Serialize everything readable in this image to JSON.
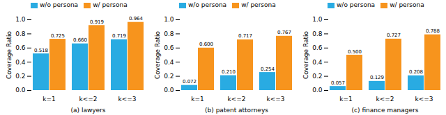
{
  "chart_data": [
    {
      "type": "bar",
      "xlabel": "(a) lawyers",
      "ylabel": "Coverage Ratio",
      "categories": [
        "k=1",
        "k<=2",
        "k<=3"
      ],
      "series": [
        {
          "name": "w/o persona",
          "color": "#29ABE2",
          "values": [
            0.518,
            0.66,
            0.719
          ],
          "value_labels": [
            "0.518",
            "0.660",
            "0.719"
          ]
        },
        {
          "name": "w/ persona",
          "color": "#F7941D",
          "values": [
            0.725,
            0.919,
            0.964
          ],
          "value_labels": [
            "0.725",
            "0.919",
            "0.964"
          ]
        }
      ],
      "ylim": [
        0.0,
        1.0
      ],
      "yticks": [
        {
          "value": 0.0,
          "label": "0.0"
        },
        0.2,
        0.4,
        0.6,
        0.8,
        {
          "value": 1.0,
          "label": "1.0"
        }
      ],
      "legend": "upper left",
      "data_labels": true
    },
    {
      "type": "bar",
      "xlabel": "(b) patent attorneys",
      "ylabel": "Coverage Ratio",
      "categories": [
        "k=1",
        "k<=2",
        "k<=3"
      ],
      "series": [
        {
          "name": "w/o persona",
          "color": "#29ABE2",
          "values": [
            0.072,
            0.21,
            0.254
          ],
          "value_labels": [
            "0.072",
            "0.210",
            "0.254"
          ]
        },
        {
          "name": "w/ persona",
          "color": "#F7941D",
          "values": [
            0.6,
            0.717,
            0.767
          ],
          "value_labels": [
            "0.600",
            "0.717",
            "0.767"
          ]
        }
      ],
      "ylim": [
        0.0,
        1.0
      ],
      "yticks": [
        {
          "value": 0.0,
          "label": "0.0"
        },
        0.2,
        0.4,
        0.6,
        0.8,
        {
          "value": 1.0,
          "label": "1.0"
        }
      ],
      "legend": "upper left",
      "data_labels": true
    },
    {
      "type": "bar",
      "xlabel": "(c) finance managers",
      "ylabel": "Coverage Ratio",
      "categories": [
        "k=1",
        "k<=2",
        "k<=3"
      ],
      "series": [
        {
          "name": "w/o persona",
          "color": "#29ABE2",
          "values": [
            0.057,
            0.129,
            0.208
          ],
          "value_labels": [
            "0.057",
            "0.129",
            "0.208"
          ]
        },
        {
          "name": "w/ persona",
          "color": "#F7941D",
          "values": [
            0.5,
            0.727,
            0.788
          ],
          "value_labels": [
            "0.500",
            "0.727",
            "0.788"
          ]
        }
      ],
      "ylim": [
        0.0,
        1.0
      ],
      "yticks": [
        {
          "value": 0.0,
          "label": "0.0"
        },
        0.2,
        0.4,
        0.6,
        0.8,
        {
          "value": 1.0,
          "label": "1.0"
        }
      ],
      "legend": "upper left",
      "data_labels": true
    }
  ]
}
